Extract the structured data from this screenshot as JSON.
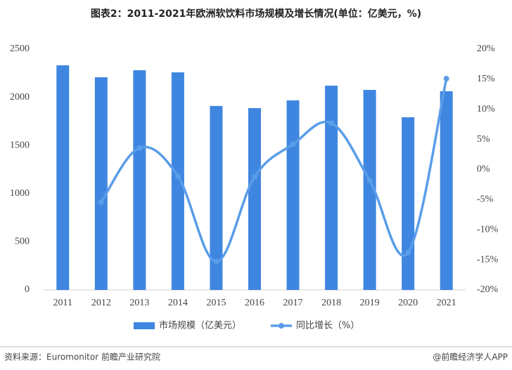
{
  "chart_data": {
    "type": "bar-line",
    "title": "图表2：2011-2021年欧洲软饮料市场规模及增长情况(单位：亿美元，%)",
    "categories": [
      "2011",
      "2012",
      "2013",
      "2014",
      "2015",
      "2016",
      "2017",
      "2018",
      "2019",
      "2020",
      "2021"
    ],
    "series": [
      {
        "name": "市场规模（亿美元）",
        "color": "#3f86e0",
        "type": "bar",
        "values": [
          2332,
          2208,
          2281,
          2259,
          1910,
          1888,
          1968,
          2121,
          2077,
          1793,
          2063
        ]
      },
      {
        "name": "同比增长（%）",
        "color": "#5a9de9",
        "type": "line",
        "axis": "y2",
        "values": [
          null,
          -5.4,
          3.6,
          -1.1,
          -15.3,
          -1.2,
          4.2,
          7.7,
          -1.8,
          -13.8,
          15.1
        ]
      }
    ],
    "ylim": [
      0,
      2500
    ],
    "yticks": [
      0,
      500,
      1000,
      1500,
      2000,
      2500
    ],
    "y2lim": [
      -20,
      20
    ],
    "y2ticks": [
      {
        "value": -20,
        "label": "-20%"
      },
      {
        "value": -15,
        "label": "-15%"
      },
      {
        "value": -10,
        "label": "-10%"
      },
      {
        "value": -5,
        "label": "-5%"
      },
      {
        "value": 0,
        "label": "0%"
      },
      {
        "value": 5,
        "label": "5%"
      },
      {
        "value": 10,
        "label": "10%"
      },
      {
        "value": 15,
        "label": "15%"
      },
      {
        "value": 20,
        "label": "20%"
      }
    ],
    "source": "资料来源：Euromonitor 前瞻产业研究院",
    "credit": "@前瞻经济学人APP"
  }
}
